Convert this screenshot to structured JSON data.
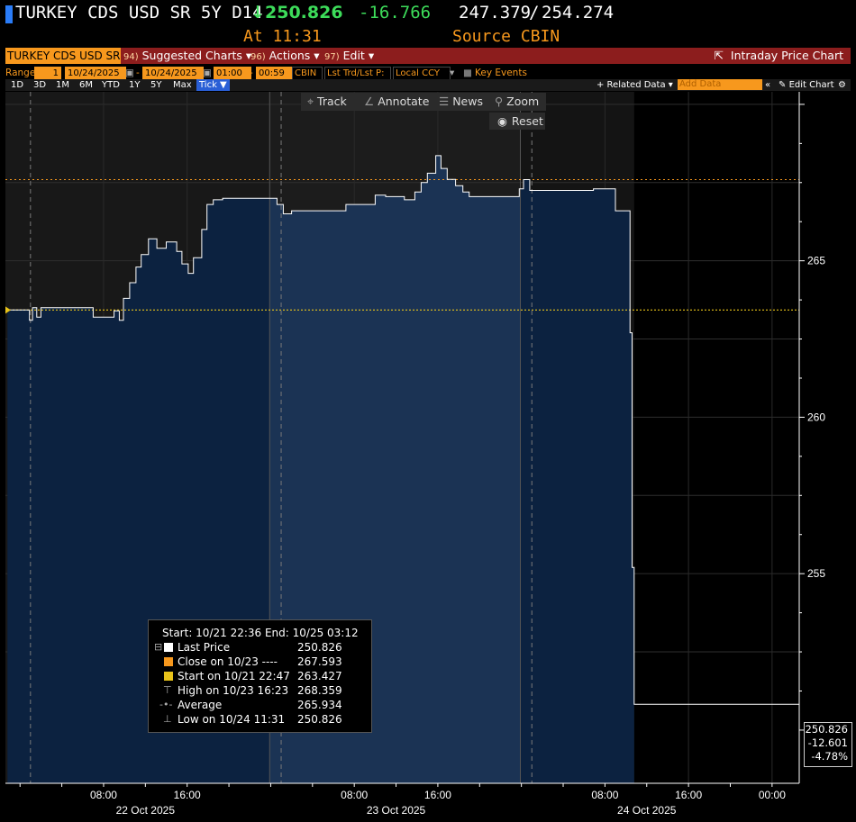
{
  "header": {
    "ticker": "TURKEY CDS USD SR 5Y D14",
    "arrow": "↓",
    "last_price": "250.826",
    "change": "-16.766",
    "bid": "247.379",
    "separator": "/",
    "ask": "254.274",
    "time_label": "At 11:31",
    "source_label": "Source CBIN",
    "colors": {
      "accent_bar": "#2a7cf7",
      "up_green": "#3ddc5a",
      "orange": "#f7981d"
    }
  },
  "menubar": {
    "ticker_field": "TURKEY CDS USD SR",
    "suggested": {
      "num": "94)",
      "label": "Suggested Charts"
    },
    "actions": {
      "num": "96)",
      "label": "Actions"
    },
    "edit": {
      "num": "97)",
      "label": "Edit"
    },
    "right_label": "Intraday Price Chart"
  },
  "rangebar": {
    "range_label": "Range",
    "range_num": "1",
    "start_date": "10/24/2025",
    "dash": "-",
    "end_date": "10/24/2025",
    "start_time": "01:00",
    "end_time": "00:59",
    "source": "CBIN",
    "price_type": "Lst Trd/Lst P:",
    "currency": "Local CCY",
    "key_events": "Key Events"
  },
  "periodbar": {
    "periods": [
      "1D",
      "3D",
      "1M",
      "6M",
      "YTD",
      "1Y",
      "5Y",
      "Max"
    ],
    "selected": "Tick ▼",
    "related_data": "+ Related Data ▾",
    "add_data_placeholder": "Add Data",
    "edit_chart": "Edit Chart"
  },
  "toolbar": {
    "track": "Track",
    "annotate": "Annotate",
    "news": "News",
    "zoom": "Zoom",
    "reset": "Reset"
  },
  "legend": {
    "title": "Start: 10/21 22:36 End: 10/25 03:12",
    "rows": [
      {
        "label": "Last Price",
        "value": "250.826",
        "swatch": "#ffffff"
      },
      {
        "label": "Close on 10/23 ----",
        "value": "267.593",
        "swatch": "#f7981d"
      },
      {
        "label": "Start on 10/21 22:47",
        "value": "263.427",
        "swatch": "#e8c31a"
      },
      {
        "label": "High on 10/23 16:23",
        "value": "268.359",
        "icon": "⊤"
      },
      {
        "label": "Average",
        "value": "265.934",
        "icon": "-•-"
      },
      {
        "label": "Low on 10/24 11:31",
        "value": "250.826",
        "icon": "⊥"
      }
    ]
  },
  "pricebox": {
    "price": "250.826",
    "change": "-12.601",
    "pct": "-4.78%"
  },
  "chart_data": {
    "type": "area",
    "x_unit": "hours since 10/21 22:36",
    "ylim": [
      248.3,
      270.4
    ],
    "yticks": [
      255,
      260,
      265
    ],
    "xticks": [
      {
        "x": 9.4,
        "label": "08:00"
      },
      {
        "x": 17.4,
        "label": "16:00"
      },
      {
        "x": 33.4,
        "label": "08:00"
      },
      {
        "x": 41.4,
        "label": "16:00"
      },
      {
        "x": 57.4,
        "label": "08:00"
      },
      {
        "x": 65.4,
        "label": "16:00"
      },
      {
        "x": 73.4,
        "label": "00:00"
      }
    ],
    "day_labels": [
      {
        "x": 13.4,
        "label": "22 Oct 2025"
      },
      {
        "x": 37.4,
        "label": "23 Oct 2025"
      },
      {
        "x": 61.4,
        "label": "24 Oct 2025"
      }
    ],
    "day_dividers": [
      2.4,
      26.4,
      50.4
    ],
    "session_dividers": [
      25.3,
      49.3
    ],
    "close_line": 267.593,
    "start_line": 263.427,
    "series": [
      {
        "name": "Last Price",
        "color": "#ffffff",
        "fill": "#0c2240",
        "points": [
          [
            0.2,
            263.43
          ],
          [
            2.3,
            263.43
          ],
          [
            2.3,
            263.1
          ],
          [
            2.6,
            263.1
          ],
          [
            2.6,
            263.5
          ],
          [
            3.0,
            263.5
          ],
          [
            3.0,
            263.2
          ],
          [
            3.4,
            263.2
          ],
          [
            3.4,
            263.5
          ],
          [
            8.4,
            263.5
          ],
          [
            8.4,
            263.2
          ],
          [
            10.4,
            263.2
          ],
          [
            10.4,
            263.4
          ],
          [
            10.9,
            263.4
          ],
          [
            10.9,
            263.1
          ],
          [
            11.3,
            263.1
          ],
          [
            11.3,
            263.8
          ],
          [
            11.9,
            263.8
          ],
          [
            11.9,
            264.3
          ],
          [
            12.5,
            264.3
          ],
          [
            12.5,
            264.8
          ],
          [
            13.0,
            264.8
          ],
          [
            13.0,
            265.2
          ],
          [
            13.7,
            265.2
          ],
          [
            13.7,
            265.7
          ],
          [
            14.5,
            265.7
          ],
          [
            14.5,
            265.4
          ],
          [
            15.4,
            265.4
          ],
          [
            15.4,
            265.6
          ],
          [
            16.4,
            265.6
          ],
          [
            16.4,
            265.3
          ],
          [
            16.9,
            265.3
          ],
          [
            16.9,
            264.9
          ],
          [
            17.5,
            264.9
          ],
          [
            17.5,
            264.6
          ],
          [
            18.0,
            264.6
          ],
          [
            18.0,
            265.1
          ],
          [
            18.8,
            265.1
          ],
          [
            18.8,
            266.0
          ],
          [
            19.3,
            266.0
          ],
          [
            19.3,
            266.8
          ],
          [
            19.9,
            266.8
          ],
          [
            19.9,
            266.95
          ],
          [
            20.8,
            266.95
          ],
          [
            20.8,
            267.0
          ],
          [
            26.0,
            267.0
          ],
          [
            26.0,
            266.8
          ],
          [
            26.6,
            266.8
          ],
          [
            26.6,
            266.5
          ],
          [
            27.4,
            266.5
          ],
          [
            27.4,
            266.6
          ],
          [
            32.6,
            266.6
          ],
          [
            32.6,
            266.8
          ],
          [
            35.4,
            266.8
          ],
          [
            35.4,
            267.1
          ],
          [
            36.4,
            267.1
          ],
          [
            36.4,
            267.05
          ],
          [
            38.2,
            267.05
          ],
          [
            38.2,
            266.95
          ],
          [
            39.2,
            266.95
          ],
          [
            39.2,
            267.2
          ],
          [
            39.8,
            267.2
          ],
          [
            39.8,
            267.5
          ],
          [
            40.4,
            267.5
          ],
          [
            40.4,
            267.8
          ],
          [
            41.2,
            267.8
          ],
          [
            41.2,
            268.359
          ],
          [
            41.7,
            268.359
          ],
          [
            41.7,
            267.95
          ],
          [
            42.3,
            267.95
          ],
          [
            42.3,
            267.6
          ],
          [
            43.1,
            267.6
          ],
          [
            43.1,
            267.4
          ],
          [
            43.8,
            267.4
          ],
          [
            43.8,
            267.2
          ],
          [
            44.4,
            267.2
          ],
          [
            44.4,
            267.05
          ],
          [
            49.2,
            267.05
          ],
          [
            49.2,
            267.3
          ],
          [
            49.6,
            267.3
          ],
          [
            49.6,
            267.593
          ],
          [
            50.2,
            267.593
          ],
          [
            50.2,
            267.25
          ],
          [
            56.3,
            267.25
          ],
          [
            56.3,
            267.3
          ],
          [
            58.4,
            267.3
          ],
          [
            58.4,
            266.6
          ],
          [
            59.8,
            266.6
          ],
          [
            59.8,
            262.7
          ],
          [
            60.0,
            262.7
          ],
          [
            60.0,
            255.2
          ],
          [
            60.2,
            255.2
          ],
          [
            60.2,
            250.826
          ],
          [
            76.0,
            250.826
          ]
        ]
      }
    ]
  }
}
